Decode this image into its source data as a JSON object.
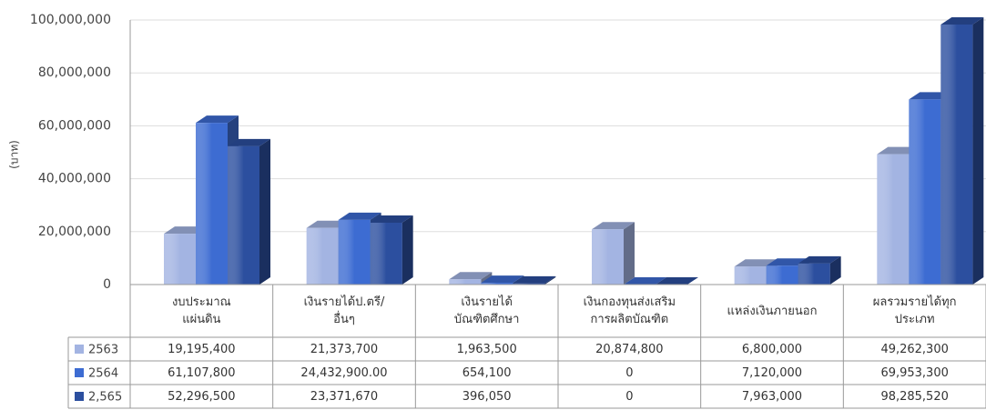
{
  "chart_data": {
    "type": "bar3d",
    "ylabel": "(บาท)",
    "categories": [
      "งบประมาณ\nแผ่นดิน",
      "เงินรายได้ป.ตรี/\nอื่นๆ",
      "เงินรายได้\nบัณฑิตศึกษา",
      "เงินกองทุนส่งเสริม\nการผลิตบัณฑิต",
      "แหล่งเงินภายนอก",
      "ผลรวมรายได้ทุก\nประเภท"
    ],
    "series": [
      {
        "name": "2563",
        "color": "#a3b4e2",
        "values": [
          19195400,
          21373700,
          1963500,
          20874800,
          6800000,
          49262300
        ],
        "value_labels": [
          "19,195,400",
          "21,373,700",
          "1,963,500",
          "20,874,800",
          "6,800,000",
          "49,262,300"
        ]
      },
      {
        "name": "2564",
        "color": "#3d6cd2",
        "values": [
          61107800,
          24432900,
          654100,
          0,
          7120000,
          69953300
        ],
        "value_labels": [
          "61,107,800",
          "24,432,900.00",
          "654,100",
          "0",
          "7,120,000",
          "69,953,300"
        ]
      },
      {
        "name": "2,565",
        "color": "#2c4f9f",
        "values": [
          52296500,
          23371670,
          396050,
          0,
          7963000,
          98285520
        ],
        "value_labels": [
          "52,296,500",
          "23,371,670",
          "396,050",
          "0",
          "7,963,000",
          "98,285,520"
        ]
      }
    ],
    "ylim": [
      0,
      100000000
    ],
    "yticks": [
      0,
      {
        "value": 20000000,
        "label": "20,000,000"
      },
      {
        "value": 40000000,
        "label": "40,000,000"
      },
      {
        "value": 60000000,
        "label": "60,000,000"
      },
      {
        "value": 80000000,
        "label": "80,000,000"
      },
      {
        "value": 100000000,
        "label": "100,000,000"
      }
    ],
    "grid": true
  }
}
